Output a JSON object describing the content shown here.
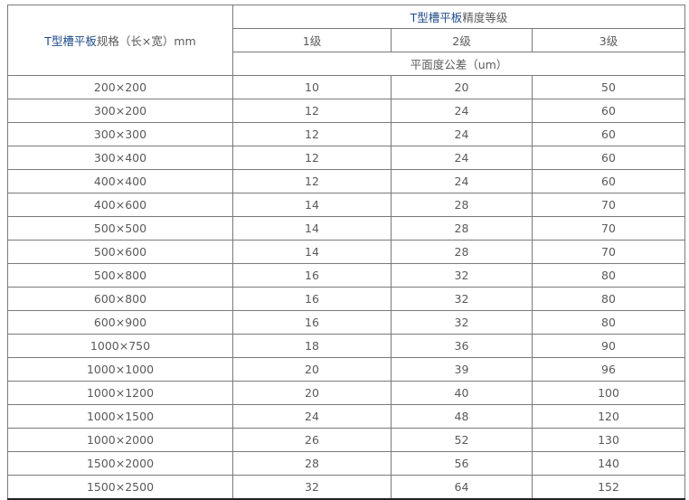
{
  "header": {
    "spec_label_highlight": "T型槽平板",
    "spec_label_rest": "规格（长×宽）mm",
    "grade_title_highlight": "T型槽平板",
    "grade_title_rest": "精度等级",
    "grades": [
      "1级",
      "2级",
      "3级"
    ],
    "tolerance_label": "平面度公差（um）"
  },
  "colors": {
    "highlight": "#1f4a8a",
    "text": "#5a5a5a",
    "border": "#7a7a7a"
  },
  "rows": [
    {
      "size": "200×200",
      "g1": "10",
      "g2": "20",
      "g3": "50"
    },
    {
      "size": "300×200",
      "g1": "12",
      "g2": "24",
      "g3": "60"
    },
    {
      "size": "300×300",
      "g1": "12",
      "g2": "24",
      "g3": "60"
    },
    {
      "size": "300×400",
      "g1": "12",
      "g2": "24",
      "g3": "60"
    },
    {
      "size": "400×400",
      "g1": "12",
      "g2": "24",
      "g3": "60"
    },
    {
      "size": "400×600",
      "g1": "14",
      "g2": "28",
      "g3": "70"
    },
    {
      "size": "500×500",
      "g1": "14",
      "g2": "28",
      "g3": "70"
    },
    {
      "size": "500×600",
      "g1": "14",
      "g2": "28",
      "g3": "70"
    },
    {
      "size": "500×800",
      "g1": "16",
      "g2": "32",
      "g3": "80"
    },
    {
      "size": "600×800",
      "g1": "16",
      "g2": "32",
      "g3": "80"
    },
    {
      "size": "600×900",
      "g1": "16",
      "g2": "32",
      "g3": "80"
    },
    {
      "size": "1000×750",
      "g1": "18",
      "g2": "36",
      "g3": "90"
    },
    {
      "size": "1000×1000",
      "g1": "20",
      "g2": "39",
      "g3": "96"
    },
    {
      "size": "1000×1200",
      "g1": "20",
      "g2": "40",
      "g3": "100"
    },
    {
      "size": "1000×1500",
      "g1": "24",
      "g2": "48",
      "g3": "120"
    },
    {
      "size": "1000×2000",
      "g1": "26",
      "g2": "52",
      "g3": "130"
    },
    {
      "size": "1500×2000",
      "g1": "28",
      "g2": "56",
      "g3": "140"
    },
    {
      "size": "1500×2500",
      "g1": "32",
      "g2": "64",
      "g3": "152"
    }
  ]
}
